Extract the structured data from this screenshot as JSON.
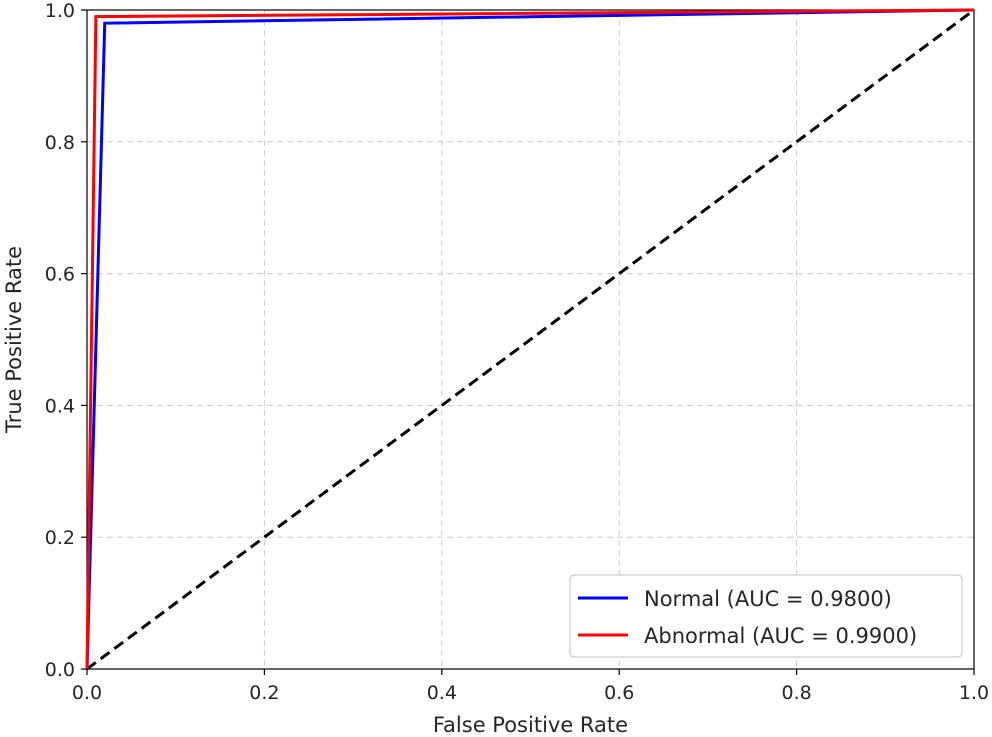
{
  "chart_data": {
    "type": "line",
    "title": "",
    "xlabel": "False Positive Rate",
    "ylabel": "True Positive Rate",
    "xlim": [
      0,
      1
    ],
    "ylim": [
      0,
      1
    ],
    "xticks": [
      "0.0",
      "0.2",
      "0.4",
      "0.6",
      "0.8",
      "1.0"
    ],
    "yticks": [
      "0.0",
      "0.2",
      "0.4",
      "0.6",
      "0.8",
      "1.0"
    ],
    "grid": true,
    "legend_position": "bottom-right",
    "series": [
      {
        "name": "Normal (AUC = 0.9800)",
        "color": "#0000ff",
        "x": [
          0.0,
          0.02,
          1.0
        ],
        "y": [
          0.0,
          0.98,
          1.0
        ]
      },
      {
        "name": "Abnormal (AUC = 0.9900)",
        "color": "#ff0000",
        "x": [
          0.0,
          0.01,
          1.0
        ],
        "y": [
          0.0,
          0.99,
          1.0
        ]
      }
    ],
    "reference_line": {
      "x": [
        0,
        1
      ],
      "y": [
        0,
        1
      ],
      "color": "#000000",
      "style": "dashed"
    }
  }
}
